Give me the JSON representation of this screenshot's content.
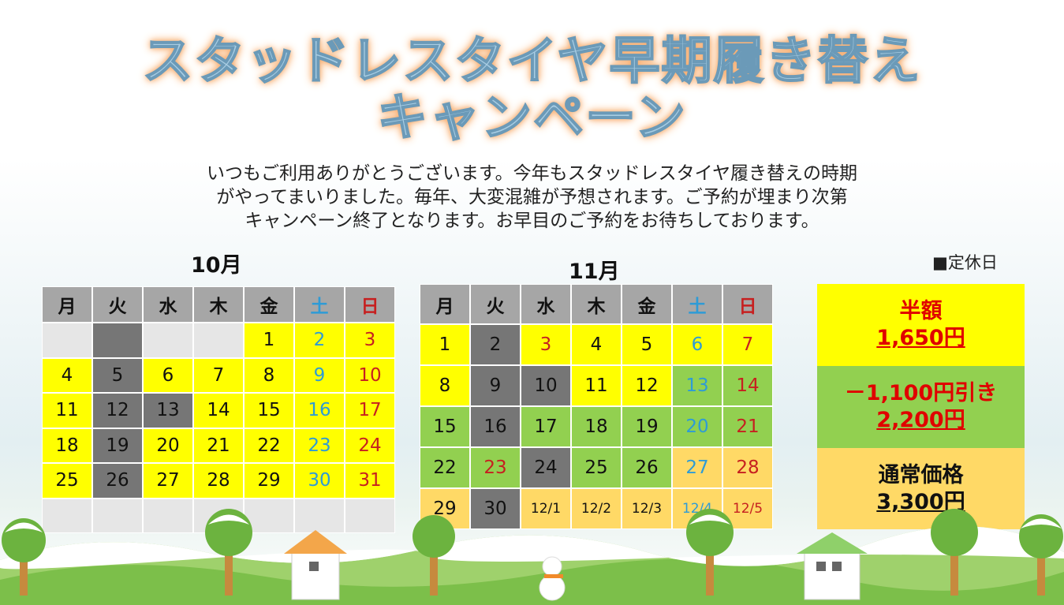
{
  "title": {
    "line1": "スタッドレスタイヤ早期履き替え",
    "line2": "キャンペーン"
  },
  "intro": [
    "いつもご利用ありがとうございます。今年もスタッドレスタイヤ履き替えの時期",
    "がやってまいりました。毎年、大変混雑が予想されます。ご予約が埋まり次第",
    "キャンペーン終了となります。お早目のご予約をお待ちしております。"
  ],
  "legend": "■定休日",
  "weekdays": [
    "月",
    "火",
    "水",
    "木",
    "金",
    "土",
    "日"
  ],
  "october": {
    "title": "10月",
    "rows": [
      [
        {
          "d": "",
          "c": "lt"
        },
        {
          "d": "",
          "c": "dk"
        },
        {
          "d": "",
          "c": "lt"
        },
        {
          "d": "",
          "c": "lt"
        },
        {
          "d": "1",
          "c": "y"
        },
        {
          "d": "2",
          "c": "y"
        },
        {
          "d": "3",
          "c": "y"
        }
      ],
      [
        {
          "d": "4",
          "c": "y"
        },
        {
          "d": "5",
          "c": "dk"
        },
        {
          "d": "6",
          "c": "y"
        },
        {
          "d": "7",
          "c": "y"
        },
        {
          "d": "8",
          "c": "y"
        },
        {
          "d": "9",
          "c": "y"
        },
        {
          "d": "10",
          "c": "y"
        }
      ],
      [
        {
          "d": "11",
          "c": "y"
        },
        {
          "d": "12",
          "c": "dk"
        },
        {
          "d": "13",
          "c": "dk"
        },
        {
          "d": "14",
          "c": "y"
        },
        {
          "d": "15",
          "c": "y"
        },
        {
          "d": "16",
          "c": "y"
        },
        {
          "d": "17",
          "c": "y"
        }
      ],
      [
        {
          "d": "18",
          "c": "y"
        },
        {
          "d": "19",
          "c": "dk"
        },
        {
          "d": "20",
          "c": "y"
        },
        {
          "d": "21",
          "c": "y"
        },
        {
          "d": "22",
          "c": "y"
        },
        {
          "d": "23",
          "c": "y"
        },
        {
          "d": "24",
          "c": "y"
        }
      ],
      [
        {
          "d": "25",
          "c": "y"
        },
        {
          "d": "26",
          "c": "dk"
        },
        {
          "d": "27",
          "c": "y"
        },
        {
          "d": "28",
          "c": "y"
        },
        {
          "d": "29",
          "c": "y"
        },
        {
          "d": "30",
          "c": "y"
        },
        {
          "d": "31",
          "c": "y"
        }
      ],
      [
        {
          "d": "",
          "c": "lt"
        },
        {
          "d": "",
          "c": "lt"
        },
        {
          "d": "",
          "c": "lt"
        },
        {
          "d": "",
          "c": "lt"
        },
        {
          "d": "",
          "c": "lt"
        },
        {
          "d": "",
          "c": "lt"
        },
        {
          "d": "",
          "c": "lt"
        }
      ]
    ]
  },
  "november": {
    "title": "11月",
    "rows": [
      [
        {
          "d": "1",
          "c": "y"
        },
        {
          "d": "2",
          "c": "dk"
        },
        {
          "d": "3",
          "c": "y",
          "red": true
        },
        {
          "d": "4",
          "c": "y"
        },
        {
          "d": "5",
          "c": "y"
        },
        {
          "d": "6",
          "c": "y"
        },
        {
          "d": "7",
          "c": "y"
        }
      ],
      [
        {
          "d": "8",
          "c": "y"
        },
        {
          "d": "9",
          "c": "dk"
        },
        {
          "d": "10",
          "c": "dk"
        },
        {
          "d": "11",
          "c": "y"
        },
        {
          "d": "12",
          "c": "y"
        },
        {
          "d": "13",
          "c": "gr"
        },
        {
          "d": "14",
          "c": "gr"
        }
      ],
      [
        {
          "d": "15",
          "c": "gr"
        },
        {
          "d": "16",
          "c": "dk"
        },
        {
          "d": "17",
          "c": "gr"
        },
        {
          "d": "18",
          "c": "gr"
        },
        {
          "d": "19",
          "c": "gr"
        },
        {
          "d": "20",
          "c": "gr"
        },
        {
          "d": "21",
          "c": "gr"
        }
      ],
      [
        {
          "d": "22",
          "c": "gr"
        },
        {
          "d": "23",
          "c": "gr",
          "red": true
        },
        {
          "d": "24",
          "c": "dk"
        },
        {
          "d": "25",
          "c": "gr"
        },
        {
          "d": "26",
          "c": "gr"
        },
        {
          "d": "27",
          "c": "or"
        },
        {
          "d": "28",
          "c": "or"
        }
      ],
      [
        {
          "d": "29",
          "c": "or"
        },
        {
          "d": "30",
          "c": "dk"
        },
        {
          "d": "12/1",
          "c": "or",
          "sm": true
        },
        {
          "d": "12/2",
          "c": "or",
          "sm": true
        },
        {
          "d": "12/3",
          "c": "or",
          "sm": true
        },
        {
          "d": "12/4",
          "c": "or",
          "sm": true
        },
        {
          "d": "12/5",
          "c": "or",
          "sm": true
        }
      ]
    ]
  },
  "prices": {
    "half": {
      "label": "半額",
      "value": "1,650円"
    },
    "discount": {
      "label": "－1,100円引き",
      "value": "2,200円"
    },
    "regular": {
      "label": "通常価格",
      "value": "3,300円"
    }
  },
  "colors": {
    "yellow": "#ffff00",
    "green": "#92d050",
    "orange": "#ffd966",
    "closed": "#767676",
    "header": "#a6a6a6",
    "saturday": "#2e9bd6",
    "sunday": "#c62020"
  }
}
